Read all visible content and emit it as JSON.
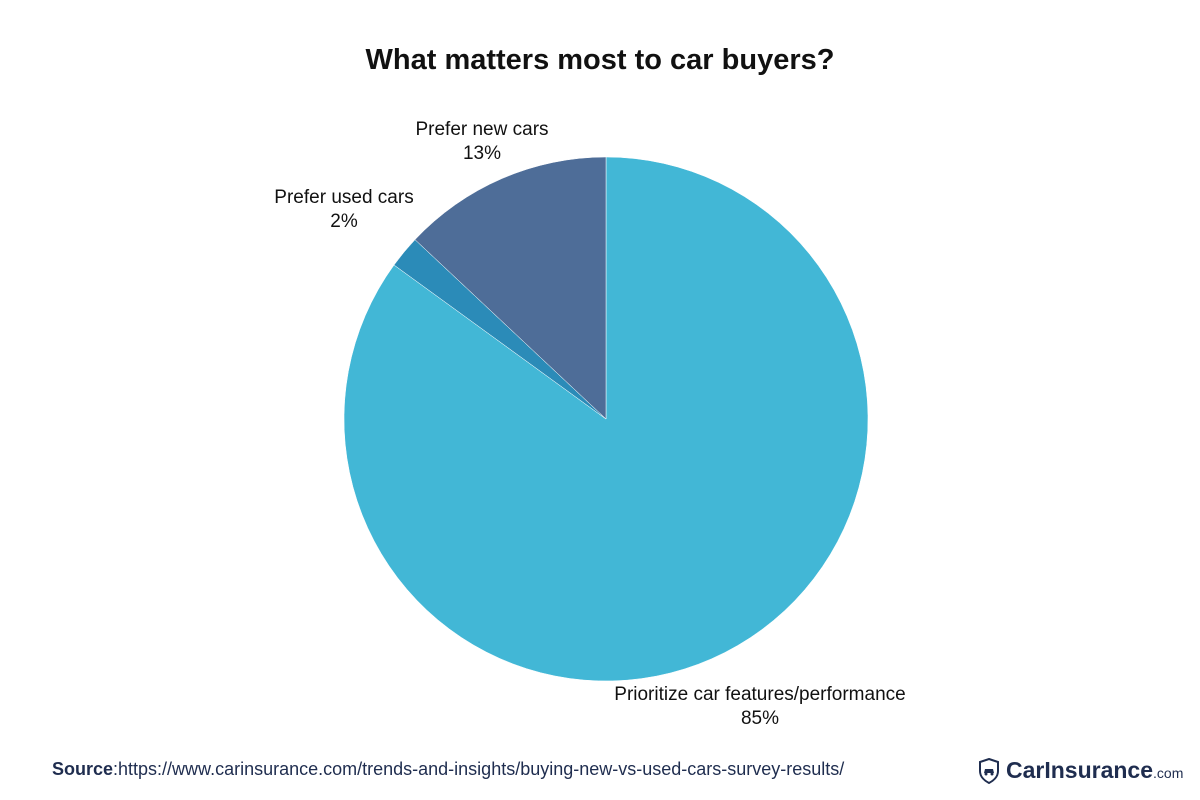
{
  "chart_data": {
    "type": "pie",
    "title": "What matters most to car buyers?",
    "slices": [
      {
        "label": "Prioritize car features/performance",
        "value": 85,
        "display": "85%",
        "color": "#42b7d6"
      },
      {
        "label": "Prefer used cars",
        "value": 2,
        "display": "2%",
        "color": "#2b8bb8"
      },
      {
        "label": "Prefer new cars",
        "value": 13,
        "display": "13%",
        "color": "#4e6d98"
      }
    ],
    "start": "top",
    "direction": "clockwise"
  },
  "source": {
    "label": "Source",
    "url": ":https://www.carinsurance.com/trends-and-insights/buying-new-vs-used-cars-survey-results/"
  },
  "logo": {
    "brand": "CarInsurance",
    "tld": ".com",
    "icon": "shield-car-icon"
  }
}
